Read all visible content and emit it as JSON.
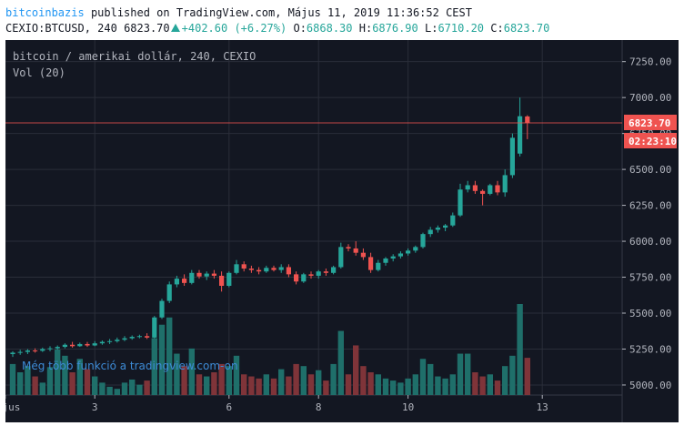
{
  "header": {
    "author": "bitcoinbazis",
    "published_text": "published on TradingView.com, Május 11, 2019 11:36:52 CEST",
    "symbol": "CEXIO:BTCUSD, 240",
    "last": "6823.70",
    "change": "+402.60 (+6.27%)",
    "o_label": "O:",
    "o_value": "6868.30",
    "h_label": "H:",
    "h_value": "6876.90",
    "l_label": "L:",
    "l_value": "6710.20",
    "c_label": "C:",
    "c_value": "6823.70"
  },
  "legend": {
    "title": "bitcoin / amerikai dollár, 240, CEXIO",
    "volume": "Vol (20)"
  },
  "watermark": "Még több funkció a tradingview.com-on",
  "price_badge": "6823.70",
  "countdown_badge": "02:23:10",
  "colors": {
    "background": "#131722",
    "grid": "#2a2e39",
    "up": "#26a69a",
    "down": "#ef5350",
    "vol_up": "#1f6f6a",
    "vol_down": "#7f3439",
    "price_line": "#ef5350",
    "watermark": "#3d8bd6"
  },
  "chart_data": {
    "type": "candlestick",
    "yaxis": {
      "ticks": [
        "5000.00",
        "5250.00",
        "5500.00",
        "5750.00",
        "6000.00",
        "6250.00",
        "6500.00",
        "6750.00",
        "7000.00",
        "7250.00"
      ],
      "ylim": [
        4930,
        7400
      ]
    },
    "xaxis": {
      "ticks": [
        {
          "label": "Május",
          "bar": -1
        },
        {
          "label": "3",
          "bar": 11
        },
        {
          "label": "6",
          "bar": 29
        },
        {
          "label": "8",
          "bar": 41
        },
        {
          "label": "10",
          "bar": 53
        },
        {
          "label": "13",
          "bar": 71
        }
      ],
      "bar_count": 73
    },
    "last_price": 6823.7,
    "candles": [
      {
        "o": 5215,
        "h": 5235,
        "l": 5195,
        "c": 5225,
        "v": 30
      },
      {
        "o": 5225,
        "h": 5245,
        "l": 5210,
        "c": 5230,
        "v": 22
      },
      {
        "o": 5230,
        "h": 5250,
        "l": 5215,
        "c": 5240,
        "v": 28
      },
      {
        "o": 5240,
        "h": 5255,
        "l": 5225,
        "c": 5238,
        "v": 18
      },
      {
        "o": 5238,
        "h": 5260,
        "l": 5230,
        "c": 5250,
        "v": 12
      },
      {
        "o": 5250,
        "h": 5270,
        "l": 5235,
        "c": 5255,
        "v": 27
      },
      {
        "o": 5255,
        "h": 5275,
        "l": 5245,
        "c": 5265,
        "v": 44
      },
      {
        "o": 5265,
        "h": 5290,
        "l": 5255,
        "c": 5280,
        "v": 38
      },
      {
        "o": 5280,
        "h": 5300,
        "l": 5260,
        "c": 5270,
        "v": 22
      },
      {
        "o": 5270,
        "h": 5295,
        "l": 5265,
        "c": 5285,
        "v": 35
      },
      {
        "o": 5285,
        "h": 5300,
        "l": 5265,
        "c": 5275,
        "v": 25
      },
      {
        "o": 5275,
        "h": 5305,
        "l": 5270,
        "c": 5290,
        "v": 18
      },
      {
        "o": 5290,
        "h": 5310,
        "l": 5280,
        "c": 5300,
        "v": 12
      },
      {
        "o": 5300,
        "h": 5320,
        "l": 5285,
        "c": 5305,
        "v": 8
      },
      {
        "o": 5305,
        "h": 5330,
        "l": 5295,
        "c": 5315,
        "v": 6
      },
      {
        "o": 5315,
        "h": 5340,
        "l": 5305,
        "c": 5325,
        "v": 12
      },
      {
        "o": 5325,
        "h": 5345,
        "l": 5315,
        "c": 5335,
        "v": 15
      },
      {
        "o": 5335,
        "h": 5350,
        "l": 5325,
        "c": 5340,
        "v": 10
      },
      {
        "o": 5340,
        "h": 5360,
        "l": 5320,
        "c": 5330,
        "v": 14
      },
      {
        "o": 5330,
        "h": 5480,
        "l": 5325,
        "c": 5470,
        "v": 55
      },
      {
        "o": 5470,
        "h": 5600,
        "l": 5460,
        "c": 5585,
        "v": 68
      },
      {
        "o": 5585,
        "h": 5720,
        "l": 5570,
        "c": 5700,
        "v": 75
      },
      {
        "o": 5700,
        "h": 5760,
        "l": 5680,
        "c": 5740,
        "v": 40
      },
      {
        "o": 5740,
        "h": 5770,
        "l": 5690,
        "c": 5710,
        "v": 28
      },
      {
        "o": 5710,
        "h": 5800,
        "l": 5700,
        "c": 5780,
        "v": 45
      },
      {
        "o": 5780,
        "h": 5800,
        "l": 5740,
        "c": 5755,
        "v": 20
      },
      {
        "o": 5755,
        "h": 5790,
        "l": 5730,
        "c": 5775,
        "v": 18
      },
      {
        "o": 5775,
        "h": 5800,
        "l": 5740,
        "c": 5760,
        "v": 22
      },
      {
        "o": 5760,
        "h": 5790,
        "l": 5650,
        "c": 5690,
        "v": 30
      },
      {
        "o": 5690,
        "h": 5790,
        "l": 5680,
        "c": 5780,
        "v": 28
      },
      {
        "o": 5780,
        "h": 5870,
        "l": 5770,
        "c": 5840,
        "v": 38
      },
      {
        "o": 5840,
        "h": 5860,
        "l": 5790,
        "c": 5810,
        "v": 20
      },
      {
        "o": 5810,
        "h": 5830,
        "l": 5780,
        "c": 5800,
        "v": 18
      },
      {
        "o": 5800,
        "h": 5820,
        "l": 5770,
        "c": 5790,
        "v": 16
      },
      {
        "o": 5790,
        "h": 5830,
        "l": 5780,
        "c": 5815,
        "v": 20
      },
      {
        "o": 5815,
        "h": 5830,
        "l": 5790,
        "c": 5800,
        "v": 16
      },
      {
        "o": 5800,
        "h": 5840,
        "l": 5780,
        "c": 5820,
        "v": 25
      },
      {
        "o": 5820,
        "h": 5840,
        "l": 5750,
        "c": 5770,
        "v": 18
      },
      {
        "o": 5770,
        "h": 5790,
        "l": 5700,
        "c": 5720,
        "v": 30
      },
      {
        "o": 5720,
        "h": 5780,
        "l": 5710,
        "c": 5770,
        "v": 28
      },
      {
        "o": 5770,
        "h": 5790,
        "l": 5740,
        "c": 5760,
        "v": 20
      },
      {
        "o": 5760,
        "h": 5800,
        "l": 5740,
        "c": 5790,
        "v": 24
      },
      {
        "o": 5790,
        "h": 5810,
        "l": 5760,
        "c": 5780,
        "v": 14
      },
      {
        "o": 5780,
        "h": 5830,
        "l": 5770,
        "c": 5820,
        "v": 30
      },
      {
        "o": 5820,
        "h": 5990,
        "l": 5810,
        "c": 5960,
        "v": 62
      },
      {
        "o": 5960,
        "h": 5980,
        "l": 5930,
        "c": 5950,
        "v": 20
      },
      {
        "o": 5950,
        "h": 6000,
        "l": 5900,
        "c": 5920,
        "v": 48
      },
      {
        "o": 5920,
        "h": 5950,
        "l": 5870,
        "c": 5890,
        "v": 28
      },
      {
        "o": 5890,
        "h": 5920,
        "l": 5780,
        "c": 5800,
        "v": 22
      },
      {
        "o": 5800,
        "h": 5870,
        "l": 5790,
        "c": 5850,
        "v": 20
      },
      {
        "o": 5850,
        "h": 5890,
        "l": 5830,
        "c": 5880,
        "v": 16
      },
      {
        "o": 5880,
        "h": 5910,
        "l": 5860,
        "c": 5895,
        "v": 14
      },
      {
        "o": 5895,
        "h": 5930,
        "l": 5880,
        "c": 5915,
        "v": 12
      },
      {
        "o": 5915,
        "h": 5950,
        "l": 5900,
        "c": 5935,
        "v": 16
      },
      {
        "o": 5935,
        "h": 5970,
        "l": 5920,
        "c": 5960,
        "v": 20
      },
      {
        "o": 5960,
        "h": 6060,
        "l": 5950,
        "c": 6050,
        "v": 35
      },
      {
        "o": 6050,
        "h": 6100,
        "l": 6030,
        "c": 6080,
        "v": 30
      },
      {
        "o": 6080,
        "h": 6110,
        "l": 6060,
        "c": 6095,
        "v": 18
      },
      {
        "o": 6095,
        "h": 6120,
        "l": 6070,
        "c": 6110,
        "v": 16
      },
      {
        "o": 6110,
        "h": 6200,
        "l": 6100,
        "c": 6180,
        "v": 20
      },
      {
        "o": 6180,
        "h": 6400,
        "l": 6170,
        "c": 6360,
        "v": 40
      },
      {
        "o": 6360,
        "h": 6420,
        "l": 6340,
        "c": 6390,
        "v": 40
      },
      {
        "o": 6390,
        "h": 6420,
        "l": 6330,
        "c": 6350,
        "v": 22
      },
      {
        "o": 6350,
        "h": 6360,
        "l": 6250,
        "c": 6330,
        "v": 18
      },
      {
        "o": 6330,
        "h": 6400,
        "l": 6320,
        "c": 6390,
        "v": 20
      },
      {
        "o": 6390,
        "h": 6420,
        "l": 6320,
        "c": 6340,
        "v": 14
      },
      {
        "o": 6340,
        "h": 6500,
        "l": 6310,
        "c": 6460,
        "v": 28
      },
      {
        "o": 6460,
        "h": 6750,
        "l": 6440,
        "c": 6720,
        "v": 38
      },
      {
        "o": 6610,
        "h": 7000,
        "l": 6590,
        "c": 6870,
        "v": 88
      },
      {
        "o": 6868.3,
        "h": 6876.9,
        "l": 6710.2,
        "c": 6823.7,
        "v": 36
      }
    ]
  }
}
